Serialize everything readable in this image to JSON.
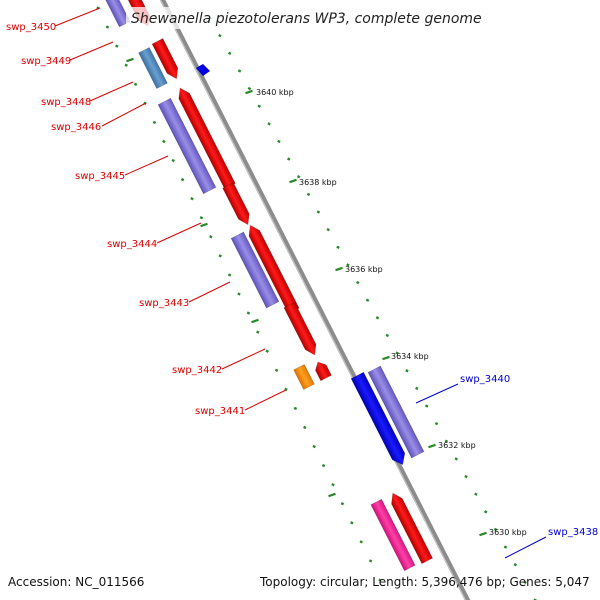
{
  "title": "Shewanella piezotolerans WP3, complete genome",
  "footer": {
    "accession": "Accession: NC_011566",
    "summary": "Topology: circular; Length: 5,396,476 bp; Genes: 5,047"
  },
  "colors": {
    "minus_strand_label": "#dd0000",
    "plus_strand_label": "#0000cc",
    "backbone": "#8c8c8c",
    "tick": "#2a8a2a"
  },
  "scale_labels": [
    "3640 kbp",
    "3638 kbp",
    "3636 kbp",
    "3634 kbp",
    "3632 kbp",
    "3630 kbp"
  ],
  "gene_labels": {
    "left": [
      "swp_3450",
      "swp_3449",
      "swp_3448",
      "swp_3446",
      "swp_3445",
      "swp_3444",
      "swp_3443",
      "swp_3442",
      "swp_3441"
    ],
    "right": [
      "swp_3440",
      "swp_3438"
    ]
  }
}
